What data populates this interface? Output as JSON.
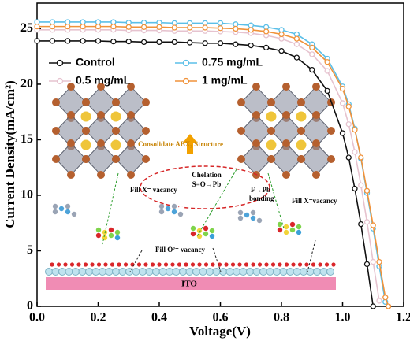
{
  "chart_data": {
    "type": "line",
    "xlabel": "Voltage(V)",
    "ylabel": "Current Density(mA/cm²)",
    "xlim": [
      0,
      1.2
    ],
    "ylim": [
      0,
      27.3
    ],
    "xticks": [
      {
        "value": 0,
        "label": "0.0"
      },
      0.2,
      0.4,
      0.6,
      0.8,
      {
        "value": 1,
        "label": "1.0"
      },
      1.2
    ],
    "yticks": [
      0,
      5,
      10,
      15,
      20,
      25
    ],
    "x": [
      0,
      0.05,
      0.1,
      0.15,
      0.2,
      0.25,
      0.3,
      0.35,
      0.4,
      0.45,
      0.5,
      0.55,
      0.6,
      0.65,
      0.7,
      0.75,
      0.8,
      0.85,
      0.9,
      0.95,
      1.0,
      1.02,
      1.04,
      1.06,
      1.08,
      1.1,
      1.12,
      1.14,
      1.15
    ],
    "series": [
      {
        "name": "Control",
        "color": "#111111",
        "values": [
          23.9,
          23.9,
          23.9,
          23.9,
          23.9,
          23.85,
          23.85,
          23.8,
          23.8,
          23.8,
          23.75,
          23.7,
          23.7,
          23.6,
          23.5,
          23.3,
          23.0,
          22.4,
          21.3,
          19.4,
          15.6,
          13.4,
          10.6,
          7.4,
          3.8,
          0.0,
          null,
          null,
          null
        ]
      },
      {
        "name": "0.75 mg/mL",
        "color": "#5bbfe8",
        "values": [
          25.6,
          25.6,
          25.6,
          25.6,
          25.6,
          25.6,
          25.55,
          25.55,
          25.55,
          25.5,
          25.5,
          25.5,
          25.5,
          25.4,
          25.3,
          25.15,
          24.9,
          24.5,
          23.6,
          22.3,
          19.8,
          18.2,
          16.0,
          13.3,
          10.2,
          7.0,
          3.6,
          0.4,
          null
        ]
      },
      {
        "name": "0.5 mg/mL",
        "color": "#e6c3cf",
        "values": [
          24.9,
          24.9,
          24.9,
          24.9,
          24.9,
          24.9,
          24.85,
          24.85,
          24.85,
          24.8,
          24.8,
          24.8,
          24.75,
          24.7,
          24.6,
          24.4,
          24.1,
          23.6,
          22.7,
          21.2,
          18.3,
          16.4,
          13.9,
          10.9,
          7.6,
          4.0,
          0.5,
          null,
          null
        ]
      },
      {
        "name": "1 mg/mL",
        "color": "#f0923a",
        "values": [
          25.2,
          25.2,
          25.2,
          25.2,
          25.2,
          25.2,
          25.15,
          25.15,
          25.15,
          25.1,
          25.1,
          25.1,
          25.05,
          25.0,
          24.9,
          24.75,
          24.5,
          24.1,
          23.3,
          22.0,
          19.6,
          18.0,
          15.9,
          13.4,
          10.4,
          7.3,
          4.0,
          0.8,
          0.0
        ]
      }
    ],
    "annotations": [
      "Consolidate ABX₃ Structure",
      "Chelation",
      "S=O→Pb",
      "Fill X⁻ vacancy",
      "F→Pb",
      "bonding",
      "Fill X⁻vacancy",
      "Fill O²⁻ vacancy",
      "ITO"
    ]
  }
}
